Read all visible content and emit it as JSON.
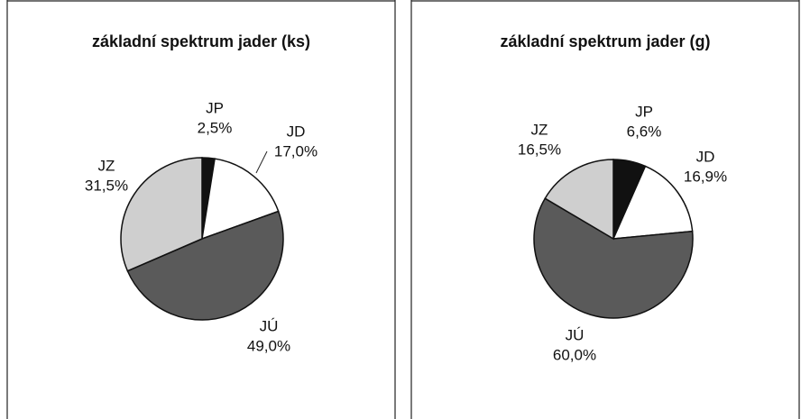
{
  "chart_data": [
    {
      "type": "pie",
      "title": "základní spektrum jader (ks)",
      "categories": [
        "JP",
        "JD",
        "JÚ",
        "JZ"
      ],
      "values": [
        2.5,
        17.0,
        49.0,
        31.5
      ],
      "value_labels": [
        "2,5%",
        "17,0%",
        "49,0%",
        "31,5%"
      ],
      "colors": [
        "#111111",
        "#ffffff",
        "#5a5a5a",
        "#cfcfcf"
      ]
    },
    {
      "type": "pie",
      "title": "základní spektrum jader (g)",
      "categories": [
        "JP",
        "JD",
        "JÚ",
        "JZ"
      ],
      "values": [
        6.6,
        16.9,
        60.0,
        16.5
      ],
      "value_labels": [
        "6,6%",
        "16,9%",
        "60,0%",
        "16,5%"
      ],
      "colors": [
        "#111111",
        "#ffffff",
        "#5a5a5a",
        "#cfcfcf"
      ]
    }
  ]
}
